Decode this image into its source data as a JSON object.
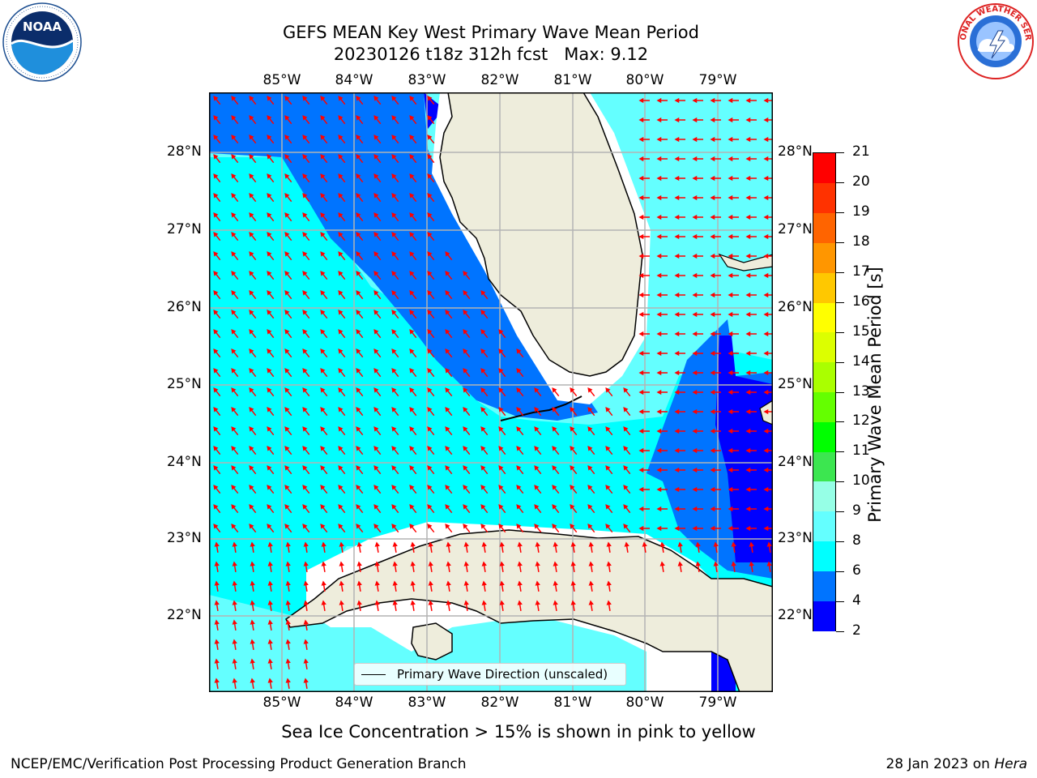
{
  "title": {
    "line1": "GEFS MEAN Key West Primary Wave Mean Period",
    "line2": "20230126 t18z 312h fcst   Max: 9.12"
  },
  "logos": {
    "left": "NOAA",
    "right": "NATIONAL WEATHER SERVICE"
  },
  "map": {
    "lon_labels": [
      "85°W",
      "84°W",
      "83°W",
      "82°W",
      "81°W",
      "80°W",
      "79°W"
    ],
    "lat_labels": [
      "28°N",
      "27°N",
      "26°N",
      "25°N",
      "24°N",
      "23°N",
      "22°N"
    ],
    "colors": {
      "land": "#eeeddc",
      "coast": "#000000",
      "grid": "#b3b3b3",
      "arrow": "#ff0000"
    }
  },
  "legend": {
    "label": "Primary Wave Direction (unscaled)"
  },
  "colorbar": {
    "label": "Primary Wave Mean Period [s]",
    "ticks": [
      "2",
      "4",
      "6",
      "8",
      "9",
      "10",
      "11",
      "12",
      "13",
      "14",
      "15",
      "16",
      "17",
      "18",
      "19",
      "20",
      "21"
    ],
    "colors": [
      "#0000ff",
      "#0074ff",
      "#00ffff",
      "#64ffff",
      "#96ffe6",
      "#3ce650",
      "#00ff00",
      "#64ff00",
      "#aaff00",
      "#dcff00",
      "#ffff00",
      "#ffc800",
      "#ff9600",
      "#ff6400",
      "#ff3200",
      "#ff0000"
    ]
  },
  "footer": {
    "note": "Sea Ice Concentration > 15% is shown in pink to yellow",
    "left": "NCEP/EMC/Verification Post Processing Product Generation Branch",
    "right_prefix": "28 Jan 2023 on ",
    "right_host": "Hera"
  }
}
